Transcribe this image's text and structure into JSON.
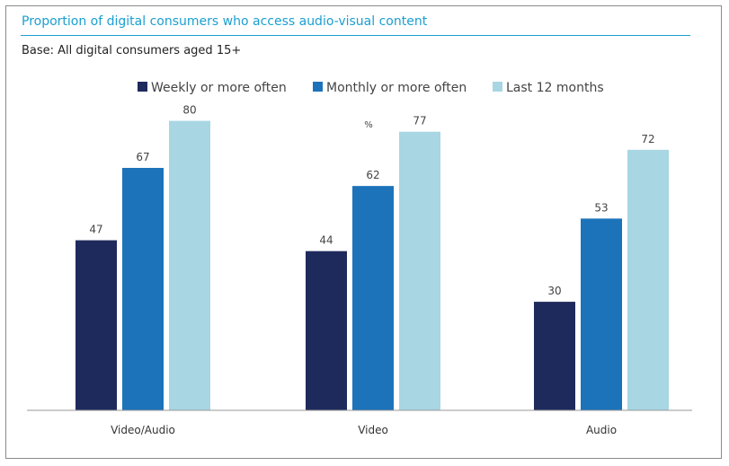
{
  "chart_data": {
    "type": "bar",
    "title": "Proportion of digital consumers who access audio-visual content",
    "subtitle": "Base: All digital consumers aged 15+",
    "unit_label": "%",
    "categories": [
      "Video/Audio",
      "Video",
      "Audio"
    ],
    "series": [
      {
        "name": "Weekly or more often",
        "color": "#1f2a5c",
        "values": [
          47,
          44,
          30
        ]
      },
      {
        "name": "Monthly or more often",
        "color": "#1c73ba",
        "values": [
          67,
          62,
          53
        ]
      },
      {
        "name": "Last 12 months",
        "color": "#a8d6e3",
        "values": [
          80,
          77,
          72
        ]
      }
    ],
    "ylim": [
      0,
      100
    ],
    "grid": false,
    "legend": "top"
  }
}
